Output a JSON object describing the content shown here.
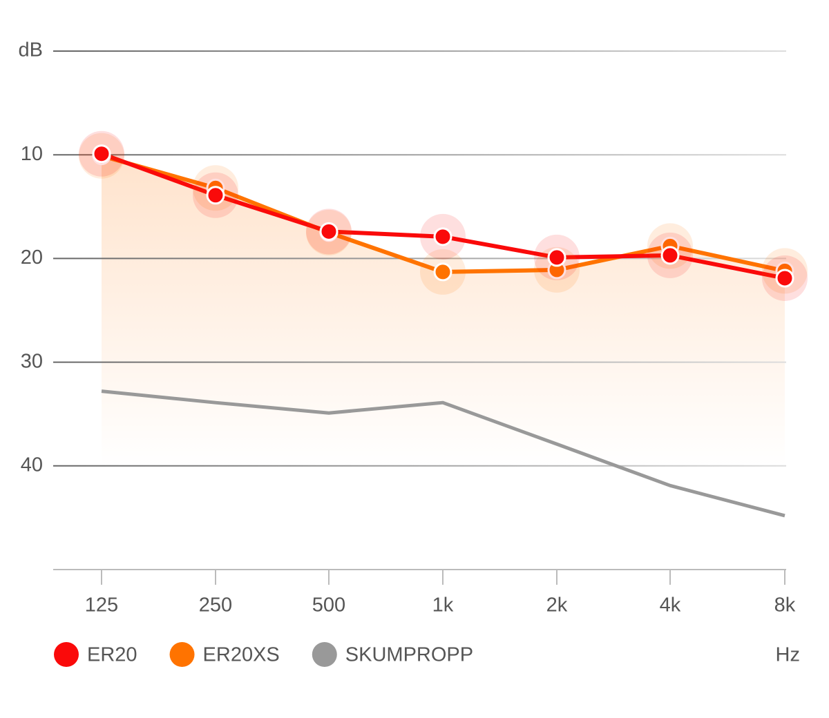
{
  "chart_data": {
    "type": "line",
    "categories": [
      "125",
      "250",
      "500",
      "1k",
      "2k",
      "4k",
      "8k"
    ],
    "series": [
      {
        "name": "ER20",
        "color": "#fa0a0a",
        "values": [
          9.9,
          13.9,
          17.4,
          17.9,
          19.9,
          19.7,
          21.9
        ]
      },
      {
        "name": "ER20XS",
        "color": "#ff7300",
        "values": [
          10.1,
          13.2,
          17.5,
          21.3,
          21.1,
          18.8,
          21.2
        ]
      },
      {
        "name": "SKUMPROPP",
        "color": "#999999",
        "values": [
          32.8,
          33.9,
          34.9,
          33.9,
          37.9,
          41.9,
          44.8
        ]
      }
    ],
    "ylim": [
      0,
      50
    ],
    "yticks": [
      {
        "value": 0,
        "label": "dB"
      },
      10,
      20,
      30,
      40
    ],
    "x_label": "Hz",
    "grid": true,
    "y_inverted": true,
    "legend": "bottom-left"
  }
}
